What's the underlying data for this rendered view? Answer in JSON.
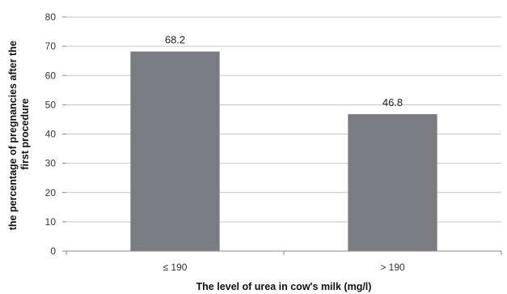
{
  "chart_data": {
    "type": "bar",
    "categories": [
      "≤ 190",
      "> 190"
    ],
    "values": [
      68.2,
      46.8
    ],
    "data_labels": [
      "68.2",
      "46.8"
    ],
    "xlabel": "The level of urea in cow's milk (mg/l)",
    "ylabel_lines": [
      "the percentage of pregnancies after the",
      "first procedure"
    ],
    "ylim": [
      0,
      80
    ],
    "yticks": [
      0,
      10,
      20,
      30,
      40,
      50,
      60,
      70,
      80
    ],
    "ytick_labels": [
      "0",
      "10",
      "20",
      "30",
      "40",
      "50",
      "60",
      "70",
      "80"
    ],
    "grid": true,
    "legend": "none",
    "bar_color": "#7b7c81",
    "grid_color": "#c6c6c6"
  }
}
